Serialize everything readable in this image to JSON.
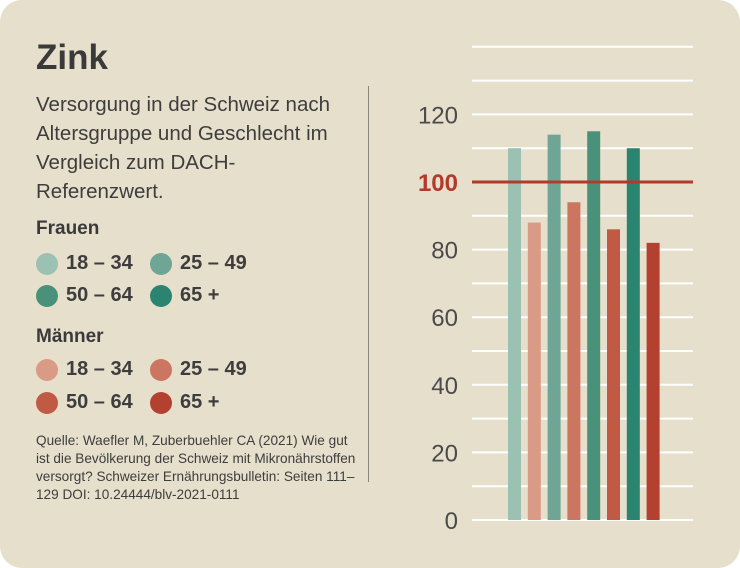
{
  "title": "Zink",
  "subtitle": "Versorgung in der Schweiz nach Altersgruppe und Geschlecht im Vergleich zum DACH-Referenzwert.",
  "legend": {
    "women_label": "Frauen",
    "men_label": "Männer",
    "women": [
      {
        "label": "18 – 34",
        "color": "#9bc1b3"
      },
      {
        "label": "25 – 49",
        "color": "#6ea594"
      },
      {
        "label": "50 – 64",
        "color": "#4a9179"
      },
      {
        "label": "65 +",
        "color": "#2b8470"
      }
    ],
    "men": [
      {
        "label": "18 – 34",
        "color": "#d99a86"
      },
      {
        "label": "25 – 49",
        "color": "#cc7560"
      },
      {
        "label": "50 – 64",
        "color": "#c05a44"
      },
      {
        "label": "65 +",
        "color": "#b4402f"
      }
    ]
  },
  "source": "Quelle: Waefler M, Zuberbuehler CA (2021) Wie gut ist die Bevölkerung der Schweiz mit Mikronährstoffen versorgt? Schweizer Ernährungsbulletin: Seiten 111–129 DOI: 10.24444/blv-2021-0111",
  "chart_data": {
    "type": "bar",
    "categories": [
      "18 – 34",
      "25 – 49",
      "50 – 64",
      "65 +"
    ],
    "series": [
      {
        "name": "Frauen",
        "values": [
          110,
          114,
          115,
          110
        ],
        "colors": [
          "#9bc1b3",
          "#6ea594",
          "#4a9179",
          "#2b8470"
        ]
      },
      {
        "name": "Männer",
        "values": [
          88,
          94,
          86,
          82
        ],
        "colors": [
          "#d99a86",
          "#cc7560",
          "#c05a44",
          "#b4402f"
        ]
      }
    ],
    "ylim": [
      0,
      140
    ],
    "yticks": [
      0,
      20,
      40,
      60,
      80,
      100,
      120
    ],
    "reference_value": 100,
    "reference_color": "#b33a2b",
    "grid": true
  }
}
